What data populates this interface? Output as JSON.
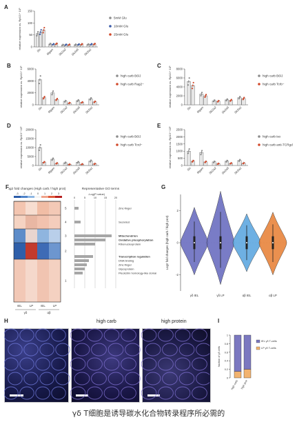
{
  "panels": {
    "a": "A",
    "b": "B",
    "c": "C",
    "d": "D",
    "e": "E",
    "f": "F",
    "g": "G",
    "h": "H",
    "i": "I"
  },
  "colors": {
    "grey": "#8c8c8c",
    "blue": "#3b5ba9",
    "red": "#d24a2c",
    "purple": "#6b6ec0",
    "orange": "#e8843c",
    "lightblue": "#5fa8e0"
  },
  "ylabel_expr": "relative expression vs. Rpl13 * 10³",
  "genes": [
    "Sis",
    "Mgam",
    "Slc2a2",
    "Slc2a5",
    "Slc5a1"
  ],
  "chart_data": [
    {
      "panel": "A",
      "type": "bar",
      "categories": [
        "Sis",
        "Mgam",
        "Slc2a2",
        "Slc2a5",
        "Slc5a1"
      ],
      "series": [
        {
          "name": "5mM Glu",
          "values": [
            55,
            12,
            8,
            9,
            10
          ]
        },
        {
          "name": "10mM Glu",
          "values": [
            62,
            11,
            9,
            10,
            11
          ]
        },
        {
          "name": "25mM Glu",
          "values": [
            70,
            13,
            9,
            11,
            12
          ]
        }
      ],
      "ylim": [
        0,
        150
      ],
      "yticks": [
        0,
        50,
        100,
        150
      ]
    },
    {
      "panel": "B",
      "type": "bar",
      "categories": [
        "Sis",
        "Mgam",
        "Slc2a2",
        "Slc2a5",
        "Slc5a1"
      ],
      "series": [
        {
          "name": "high carb B6/J",
          "values": [
            4200,
            2000,
            600,
            700,
            1000
          ]
        },
        {
          "name": "high carb Rag2−",
          "values": [
            1200,
            900,
            300,
            400,
            500
          ]
        }
      ],
      "ylim": [
        0,
        6000
      ],
      "yticks": [
        0,
        2000,
        4000,
        6000
      ]
    },
    {
      "panel": "C",
      "type": "bar",
      "categories": [
        "Sis",
        "Mgam",
        "Slc2a2",
        "Slc2a5",
        "Slc5a1"
      ],
      "series": [
        {
          "name": "high carb B6/J",
          "values": [
            5200,
            2400,
            900,
            1100,
            1600
          ]
        },
        {
          "name": "high carb Tcrb−",
          "values": [
            4300,
            2000,
            800,
            1000,
            1400
          ]
        }
      ],
      "ylim": [
        0,
        8000
      ],
      "yticks": [
        0,
        2000,
        4000,
        6000,
        8000
      ]
    },
    {
      "panel": "D",
      "type": "bar",
      "categories": [
        "Sis",
        "Mgam",
        "Slc2a2",
        "Slc2a5",
        "Slc5a1"
      ],
      "series": [
        {
          "name": "high carb B6/J",
          "values": [
            10000,
            3500,
            1500,
            1800,
            2500
          ]
        },
        {
          "name": "high carb Tcrd−",
          "values": [
            1800,
            1200,
            600,
            700,
            900
          ]
        }
      ],
      "ylim": [
        0,
        20000
      ],
      "yticks": [
        0,
        5000,
        10000,
        15000,
        20000
      ]
    },
    {
      "panel": "E",
      "type": "bar",
      "categories": [
        "Sis",
        "Mgam",
        "Slc2a2",
        "Slc2a5",
        "Slc5a1"
      ],
      "series": [
        {
          "name": "high carb iso",
          "values": [
            1000,
            900,
            250,
            300,
            350
          ]
        },
        {
          "name": "high carb anti-TCRgd",
          "values": [
            300,
            250,
            120,
            150,
            160
          ]
        }
      ],
      "ylim": [
        0,
        2500
      ],
      "yticks": [
        0,
        500,
        1000,
        1500,
        2000,
        2500
      ]
    },
    {
      "panel": "I",
      "type": "bar",
      "categories": [
        "high carb",
        "high prot"
      ],
      "series": [
        {
          "name": "IEL γδ T-cells",
          "values": [
            0.85,
            0.8
          ]
        },
        {
          "name": "LP γδ T-cells",
          "values": [
            0.15,
            0.2
          ]
        }
      ],
      "ylabel": "fraction of γδ cells",
      "ylim": [
        0,
        1
      ],
      "yticks": [
        0,
        0.2,
        0.4,
        0.6,
        0.8,
        1
      ]
    }
  ],
  "panelF": {
    "title": "Log2 fold changes (High carb / high prot)",
    "scale_ticks": [
      "-3",
      "-2",
      "-1",
      "0",
      "1",
      "2",
      "3"
    ],
    "cluster_numbers": [
      "5",
      "4",
      "3",
      "2",
      "1"
    ],
    "col_labels": [
      "IEL",
      "LP",
      "IEL",
      "LP"
    ],
    "group_labels": [
      "γδ",
      "αβ"
    ],
    "go_title": "Representative GO terms",
    "go_axis": "-Log(P-value)",
    "go_ticks": [
      "0",
      "5",
      "10",
      "15",
      "20"
    ],
    "go_terms": [
      {
        "label": "Zinc-finger",
        "value": 2,
        "bold": false
      },
      {
        "label": "Secreted",
        "value": 3,
        "bold": false
      },
      {
        "label": "Mitochondrion",
        "value": 18,
        "bold": true
      },
      {
        "label": "Oxidative phosphorylation",
        "value": 15,
        "bold": true
      },
      {
        "label": "Ribonucleoprotein",
        "value": 10,
        "bold": false
      },
      {
        "label": "Transcription regulation",
        "value": 9,
        "bold": true
      },
      {
        "label": "DNA binding",
        "value": 7,
        "bold": false
      },
      {
        "label": "Zinc-finger",
        "value": 6,
        "bold": false
      },
      {
        "label": "Glycoprotein",
        "value": 5,
        "bold": false
      },
      {
        "label": "Pleckstrin homology-like domain",
        "value": 4,
        "bold": false
      }
    ]
  },
  "panelG": {
    "ylabel": "Log2 fold changes (high carb / high prot)",
    "yticks": [
      "2",
      "0",
      "-2"
    ],
    "violins": [
      {
        "label": "γδ IEL"
      },
      {
        "label": "γδ LP"
      },
      {
        "label": "αβ IEL"
      },
      {
        "label": "αβ LP"
      }
    ]
  },
  "panelH": {
    "labels": [
      "high carb",
      "high protein"
    ]
  },
  "caption": "γδ T细胞是诱导碳水化合物转录程序所必需的"
}
